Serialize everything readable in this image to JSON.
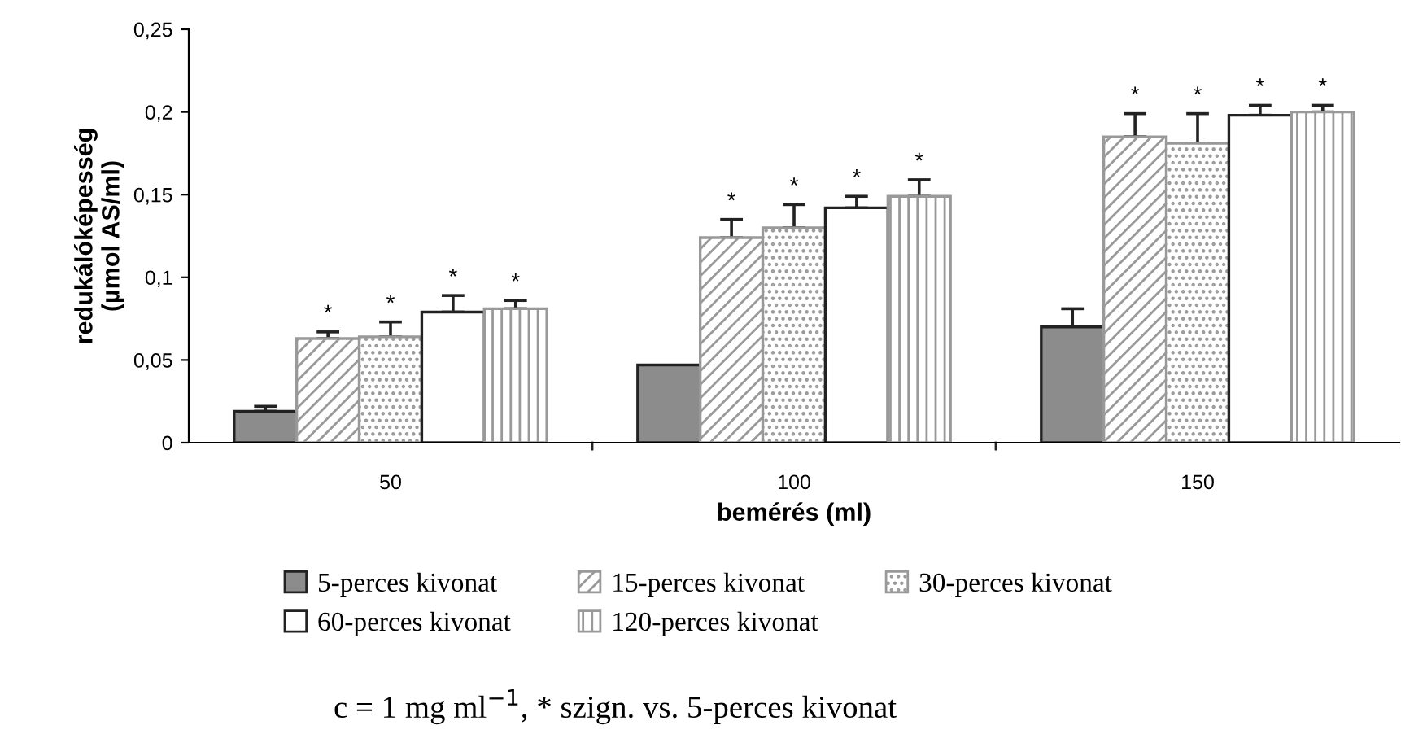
{
  "chart_data": {
    "type": "bar",
    "xlabel": "bemérés (ml)",
    "ylabel": "redukálóképesség\n(µmol AS/ml)",
    "categories": [
      "50",
      "100",
      "150"
    ],
    "series": [
      {
        "name": "5-perces kivonat",
        "color": "#8c8c8c",
        "values": [
          0.019,
          0.047,
          0.07
        ],
        "errors": [
          [
            0.019,
            0.022
          ],
          null,
          [
            0.07,
            0.081
          ]
        ]
      },
      {
        "name": "15-perces kivonat",
        "color": "#999999",
        "values": [
          0.063,
          0.124,
          0.185
        ],
        "errors": [
          [
            0.063,
            0.067
          ],
          [
            0.124,
            0.135
          ],
          [
            0.185,
            0.199
          ]
        ],
        "value_labels": [
          "*",
          "*",
          "*"
        ]
      },
      {
        "name": "30-perces kivonat",
        "color": "#999999",
        "values": [
          0.064,
          0.13,
          0.181
        ],
        "errors": [
          [
            0.064,
            0.073
          ],
          [
            0.13,
            0.144
          ],
          [
            0.181,
            0.199
          ]
        ],
        "value_labels": [
          "*",
          "*",
          "*"
        ]
      },
      {
        "name": "60-perces kivonat",
        "color": "#ffffff",
        "values": [
          0.079,
          0.142,
          0.198
        ],
        "errors": [
          [
            0.079,
            0.089
          ],
          [
            0.142,
            0.149
          ],
          [
            0.198,
            0.204
          ]
        ],
        "value_labels": [
          "*",
          "*",
          "*"
        ]
      },
      {
        "name": "120-perces kivonat",
        "color": "#999999",
        "values": [
          0.081,
          0.149,
          0.2
        ],
        "errors": [
          [
            0.081,
            0.086
          ],
          [
            0.149,
            0.159
          ],
          [
            0.2,
            0.204
          ]
        ],
        "value_labels": [
          "*",
          "*",
          "*"
        ]
      }
    ],
    "ylim": [
      0,
      0.25
    ],
    "yticks": [
      0,
      {
        "value": 0.05,
        "label": "0,05"
      },
      {
        "value": 0.1,
        "label": "0,1"
      },
      {
        "value": 0.15,
        "label": "0,15"
      },
      {
        "value": 0.2,
        "label": "0,2"
      },
      {
        "value": 0.25,
        "label": "0,25"
      }
    ],
    "grid": false,
    "legend": "bottom",
    "annotations": [
      "c = 1 mg ml$^{−1}$, * szign. vs. 5-perces kivonat"
    ]
  }
}
